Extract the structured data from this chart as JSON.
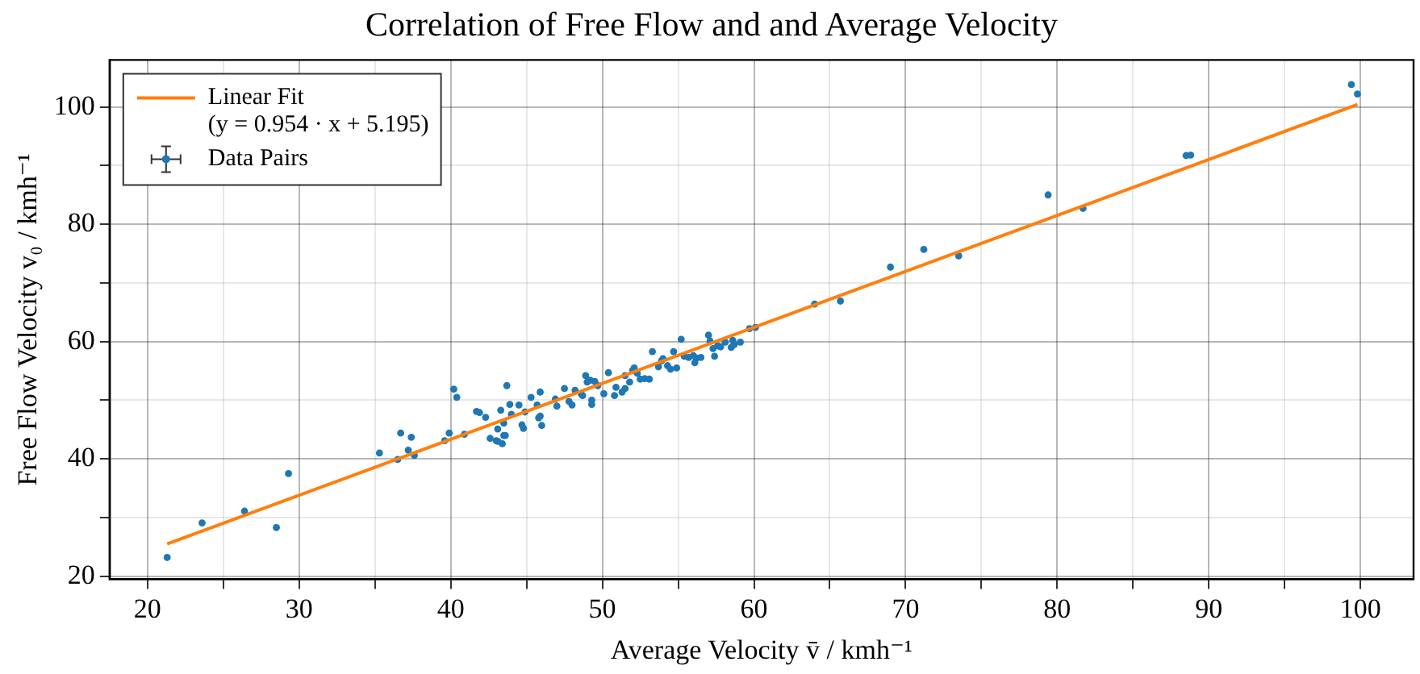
{
  "chart_data": {
    "type": "scatter",
    "title": "Correlation of Free Flow and and Average Velocity",
    "xlabel": "Average Velocity v̄ / kmh⁻¹",
    "ylabel": "Free Flow Velocity v₀ / kmh⁻¹",
    "xlim": [
      17.5,
      103.5
    ],
    "ylim": [
      19.5,
      108
    ],
    "xticks": [
      20,
      {
        "value": 25,
        "label": null
      },
      30,
      {
        "value": 35,
        "label": null
      },
      40,
      {
        "value": 45,
        "label": null
      },
      50,
      {
        "value": 55,
        "label": null
      },
      60,
      {
        "value": 65,
        "label": null
      },
      70,
      {
        "value": 75,
        "label": null
      },
      80,
      {
        "value": 85,
        "label": null
      },
      90,
      {
        "value": 95,
        "label": null
      },
      100
    ],
    "yticks": [
      20,
      {
        "value": 30,
        "label": null
      },
      40,
      {
        "value": 50,
        "label": null
      },
      60,
      {
        "value": 70,
        "label": null
      },
      80,
      {
        "value": 90,
        "label": null
      },
      100
    ],
    "grid": true,
    "legend": "top left",
    "series": [
      {
        "name": "Linear Fit\n(y = 0.954 · x + 5.195)",
        "type": "line",
        "color": "#ff7f0e",
        "x": [
          21.3,
          99.8
        ],
        "values": [
          25.5,
          100.4
        ]
      },
      {
        "name": "Data Pairs",
        "marker": "circle",
        "color": "#1f77b4",
        "x": [
          21.3,
          23.6,
          26.4,
          28.5,
          29.3,
          35.3,
          36.5,
          36.7,
          37.2,
          37.4,
          37.6,
          39.6,
          39.9,
          40.2,
          40.4,
          40.9,
          41.7,
          41.9,
          42.3,
          42.6,
          43.0,
          43.1,
          43.1,
          43.3,
          43.4,
          43.5,
          43.5,
          43.6,
          43.7,
          43.9,
          44.0,
          44.5,
          44.7,
          44.8,
          44.9,
          45.3,
          45.7,
          45.9,
          45.9,
          45.8,
          46.0,
          46.9,
          47.0,
          47.5,
          47.8,
          48.0,
          48.2,
          48.6,
          48.7,
          48.9,
          49.0,
          49.2,
          49.3,
          49.3,
          49.5,
          49.7,
          50.1,
          50.4,
          50.8,
          50.9,
          51.3,
          51.5,
          51.5,
          51.8,
          52.0,
          52.1,
          52.3,
          52.5,
          52.8,
          53.1,
          53.3,
          53.7,
          53.9,
          54.0,
          54.3,
          54.5,
          54.9,
          54.7,
          55.2,
          55.4,
          55.7,
          56.0,
          56.2,
          56.5,
          56.1,
          57.0,
          57.1,
          57.3,
          57.6,
          57.8,
          57.4,
          58.1,
          58.5,
          58.7,
          59.1,
          58.6,
          59.7,
          60.1,
          64.0,
          65.7,
          69.0,
          71.2,
          73.5,
          79.4,
          81.7,
          88.5,
          88.8,
          99.4,
          99.8
        ],
        "values": [
          23.2,
          29.1,
          31.1,
          28.3,
          37.5,
          41.0,
          39.9,
          44.4,
          41.5,
          43.7,
          40.6,
          43.1,
          44.4,
          51.9,
          50.5,
          44.2,
          48.1,
          47.9,
          47.1,
          43.5,
          43.1,
          43.0,
          45.1,
          48.3,
          42.6,
          46.1,
          44.0,
          44.0,
          52.5,
          49.3,
          47.6,
          49.2,
          45.8,
          45.2,
          48.0,
          50.5,
          49.2,
          51.4,
          47.3,
          47.0,
          45.7,
          50.2,
          49.0,
          52.0,
          49.8,
          49.2,
          51.7,
          51.1,
          50.8,
          54.2,
          53.1,
          53.4,
          50.0,
          49.3,
          53.2,
          52.5,
          51.1,
          54.7,
          50.8,
          52.2,
          51.4,
          52.0,
          54.2,
          53.1,
          55.1,
          55.5,
          54.6,
          53.6,
          53.7,
          53.6,
          58.3,
          55.7,
          56.7,
          57.1,
          55.9,
          55.3,
          55.5,
          58.3,
          60.4,
          57.5,
          57.3,
          57.6,
          57.2,
          57.3,
          56.4,
          61.1,
          60.1,
          58.8,
          59.3,
          59.1,
          57.5,
          59.9,
          59.0,
          59.5,
          59.9,
          60.2,
          62.2,
          62.4,
          66.4,
          66.9,
          72.7,
          75.7,
          74.6,
          85.0,
          82.7,
          91.7,
          91.8,
          103.8,
          102.2
        ]
      }
    ]
  }
}
